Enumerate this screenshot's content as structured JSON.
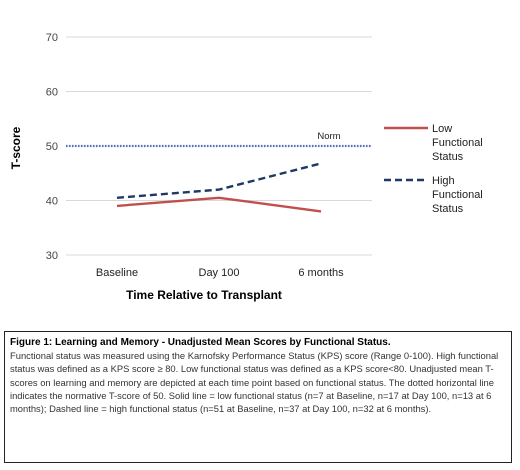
{
  "chart_data": {
    "type": "line",
    "title": "",
    "xlabel": "Time Relative to Transplant",
    "ylabel": "T-score",
    "categories": [
      "Baseline",
      "Day 100",
      "6 months"
    ],
    "ylim": [
      30,
      70
    ],
    "yticks": [
      "30",
      "40",
      "50",
      "60",
      "70"
    ],
    "grid": true,
    "legend_position": "right",
    "series": [
      {
        "name": "Low Functional Status",
        "values": [
          39.0,
          40.5,
          38.0
        ],
        "color": "#c0504d",
        "style": "solid"
      },
      {
        "name": "High Functional Status",
        "values": [
          40.5,
          42.0,
          46.8
        ],
        "color": "#1f3864",
        "style": "dashed"
      }
    ],
    "reference_line": {
      "label": "Norm",
      "value": 50,
      "color": "#4f6fc0",
      "style": "dotted"
    }
  },
  "caption": {
    "title": "Figure 1: Learning and Memory - Unadjusted Mean Scores by Functional Status.",
    "body": "Functional status was measured using the Karnofsky Performance Status (KPS) score (Range 0-100). High functional status was defined as a KPS score ≥ 80.  Low functional status was defined as a KPS score<80. Unadjusted mean T-scores on learning and memory are depicted at each time point based on functional status. The dotted horizontal line indicates the normative T-score of 50. Solid line = low functional status (n=7 at Baseline, n=17 at Day 100, n=13 at 6 months); Dashed line = high functional status (n=51 at Baseline, n=37 at Day 100, n=32 at 6 months)."
  }
}
